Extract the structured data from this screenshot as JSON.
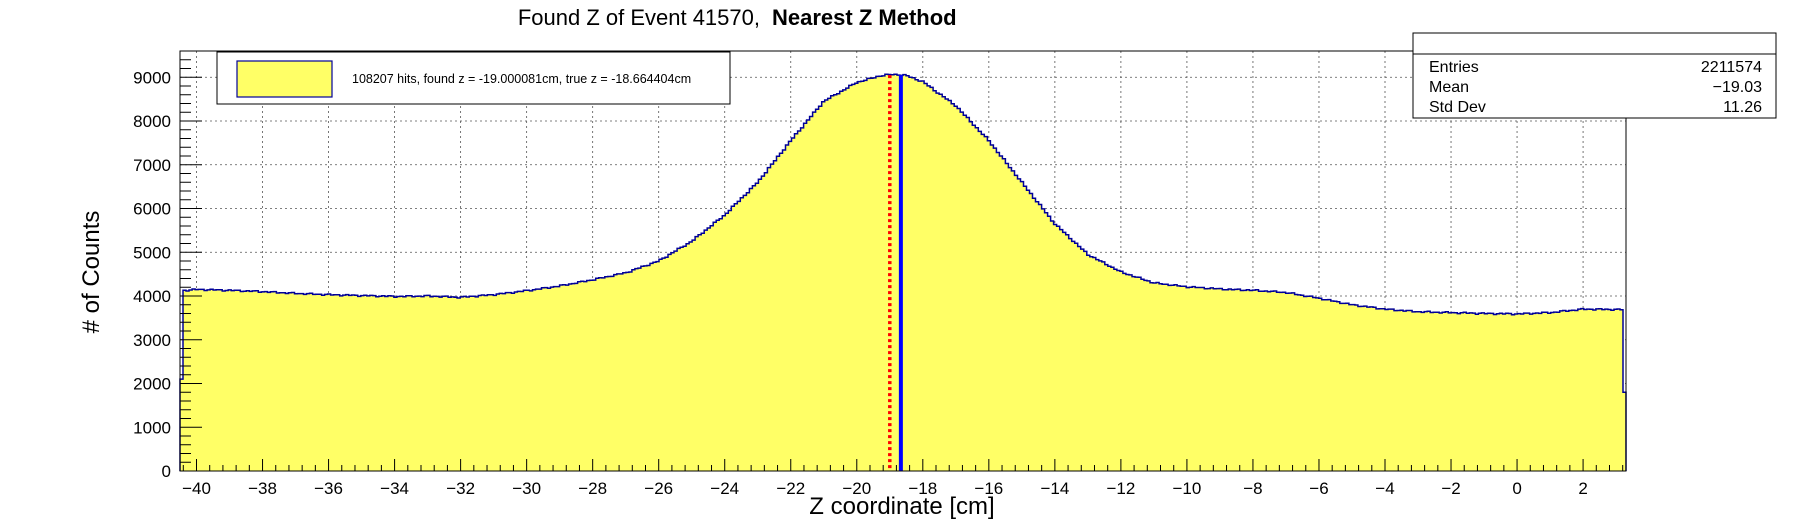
{
  "chart_data": {
    "type": "histogram",
    "title": "Found Z of Event 41570,",
    "title_bold": "Nearest Z Method",
    "xlabel": "Z coordinate [cm]",
    "ylabel": "# of Counts",
    "xlim": [
      -40.5,
      3.3
    ],
    "ylim": [
      0,
      9600
    ],
    "x_ticks": [
      -40,
      -38,
      -36,
      -34,
      -32,
      -30,
      -28,
      -26,
      -24,
      -22,
      -20,
      -18,
      -16,
      -14,
      -12,
      -10,
      -8,
      -6,
      -4,
      -2,
      0,
      2
    ],
    "y_ticks": [
      0,
      1000,
      2000,
      3000,
      4000,
      5000,
      6000,
      7000,
      8000,
      9000
    ],
    "grid": true,
    "fill_color": "#ffff66",
    "line_color": "#000099",
    "profile": [
      [
        -40.5,
        2100
      ],
      [
        -40.45,
        4120
      ],
      [
        -40.0,
        4150
      ],
      [
        -39.0,
        4130
      ],
      [
        -38.0,
        4100
      ],
      [
        -37.0,
        4060
      ],
      [
        -36.0,
        4030
      ],
      [
        -35.0,
        4010
      ],
      [
        -34.0,
        3990
      ],
      [
        -33.0,
        4000
      ],
      [
        -32.0,
        3970
      ],
      [
        -31.0,
        4030
      ],
      [
        -30.0,
        4120
      ],
      [
        -29.0,
        4230
      ],
      [
        -28.0,
        4370
      ],
      [
        -27.0,
        4530
      ],
      [
        -26.0,
        4800
      ],
      [
        -25.0,
        5250
      ],
      [
        -24.0,
        5850
      ],
      [
        -23.0,
        6600
      ],
      [
        -22.0,
        7550
      ],
      [
        -21.0,
        8450
      ],
      [
        -20.0,
        8880
      ],
      [
        -19.3,
        9030
      ],
      [
        -19.0,
        9060
      ],
      [
        -18.7,
        9060
      ],
      [
        -18.5,
        9040
      ],
      [
        -18.0,
        8900
      ],
      [
        -17.0,
        8350
      ],
      [
        -16.0,
        7550
      ],
      [
        -15.0,
        6600
      ],
      [
        -14.0,
        5650
      ],
      [
        -13.0,
        4950
      ],
      [
        -12.0,
        4550
      ],
      [
        -11.0,
        4300
      ],
      [
        -10.0,
        4210
      ],
      [
        -9.0,
        4160
      ],
      [
        -8.0,
        4130
      ],
      [
        -7.0,
        4080
      ],
      [
        -6.0,
        3950
      ],
      [
        -5.0,
        3800
      ],
      [
        -4.0,
        3700
      ],
      [
        -3.0,
        3640
      ],
      [
        -2.0,
        3620
      ],
      [
        -1.0,
        3600
      ],
      [
        0.0,
        3590
      ],
      [
        1.0,
        3620
      ],
      [
        2.0,
        3700
      ],
      [
        3.25,
        3690
      ],
      [
        3.3,
        1800
      ]
    ],
    "markers": [
      {
        "name": "found-z-line",
        "x": -19.000081,
        "color": "#ff0000",
        "style": "dotted"
      },
      {
        "name": "true-z-line",
        "x": -18.664404,
        "color": "#0000ff",
        "style": "solid"
      }
    ],
    "legend": {
      "placement": "top-left",
      "entry": "108207 hits, found z = -19.000081cm, true z = -18.664404cm"
    },
    "stats": {
      "placement": "top-right",
      "rows": [
        {
          "label": "Entries",
          "value": "2211574"
        },
        {
          "label": "Mean",
          "value": "−19.03"
        },
        {
          "label": "Std Dev",
          "value": "11.26"
        }
      ]
    }
  }
}
